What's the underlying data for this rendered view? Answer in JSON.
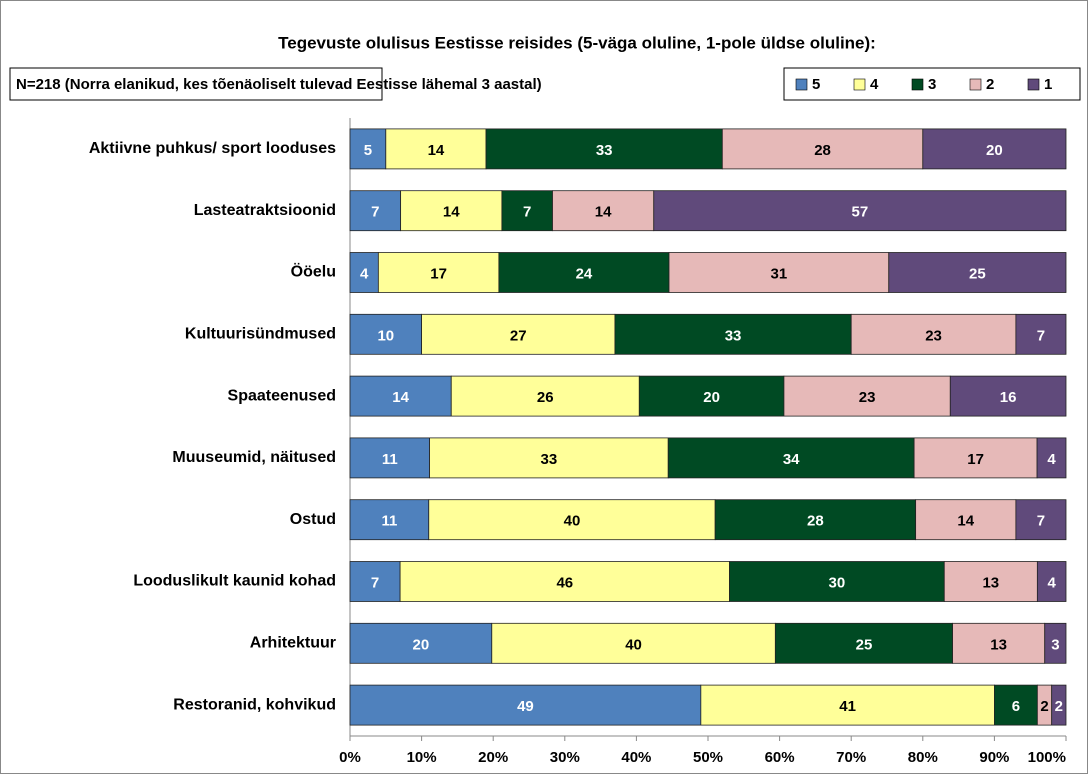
{
  "chart_data": {
    "type": "bar",
    "orientation": "horizontal",
    "stacking": "percent",
    "title": "Tegevuste olulisus Eestisse reisides (5-väga oluline, 1-pole üldse oluline):",
    "subtitle": "N=218 (Norra elanikud, kes tõenäoliselt tulevad Eestisse lähemal 3 aastal)",
    "categories": [
      "Aktiivne puhkus/ sport looduses",
      "Lasteatraktsioonid",
      "Ööelu",
      "Kultuurisündmused",
      "Spaateenused",
      "Muuseumid, näitused",
      "Ostud",
      "Looduslikult kaunid kohad",
      "Arhitektuur",
      "Restoranid, kohvikud"
    ],
    "series": [
      {
        "name": "5",
        "color": "#4f81bd",
        "label_color": "#ffffff",
        "values": [
          5,
          7,
          4,
          10,
          14,
          11,
          11,
          7,
          20,
          49
        ]
      },
      {
        "name": "4",
        "color": "#ffff99",
        "label_color": "#000000",
        "values": [
          14,
          14,
          17,
          27,
          26,
          33,
          40,
          46,
          40,
          41
        ]
      },
      {
        "name": "3",
        "color": "#004a23",
        "label_color": "#ffffff",
        "values": [
          33,
          7,
          24,
          33,
          20,
          34,
          28,
          30,
          25,
          6
        ]
      },
      {
        "name": "2",
        "color": "#e6b9b8",
        "label_color": "#000000",
        "values": [
          28,
          14,
          31,
          23,
          23,
          17,
          14,
          13,
          13,
          2
        ]
      },
      {
        "name": "1",
        "color": "#604a7b",
        "label_color": "#ffffff",
        "values": [
          20,
          57,
          25,
          7,
          16,
          4,
          7,
          4,
          3,
          2
        ]
      }
    ],
    "xlim": [
      0,
      100
    ],
    "xticks": [
      {
        "value": 0,
        "label": "0%"
      },
      {
        "value": 10,
        "label": "10%"
      },
      {
        "value": 20,
        "label": "20%"
      },
      {
        "value": 30,
        "label": "30%"
      },
      {
        "value": 40,
        "label": "40%"
      },
      {
        "value": 50,
        "label": "50%"
      },
      {
        "value": 60,
        "label": "60%"
      },
      {
        "value": 70,
        "label": "70%"
      },
      {
        "value": 80,
        "label": "80%"
      },
      {
        "value": 90,
        "label": "90%"
      },
      {
        "value": 100,
        "label": "100%"
      }
    ],
    "legend": "top-right",
    "grid": false
  }
}
